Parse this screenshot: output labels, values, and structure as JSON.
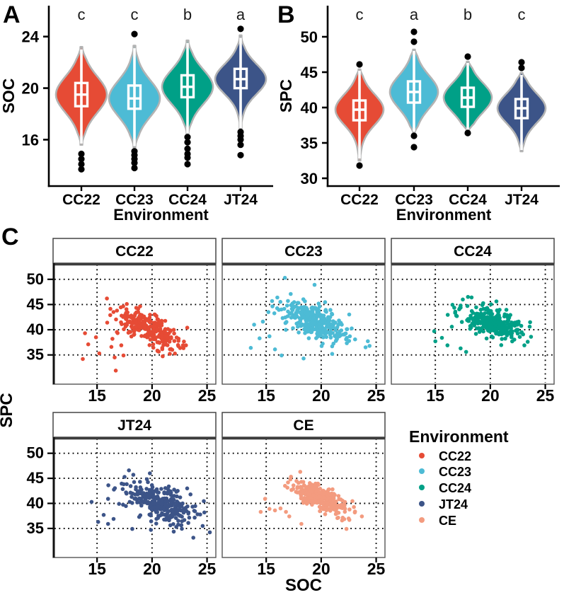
{
  "figure": {
    "panel_labels": {
      "A": "A",
      "B": "B",
      "C": "C"
    },
    "colors": {
      "CC22": "#E64B35",
      "CC23": "#4DBBD5",
      "CC24": "#00A087",
      "JT24": "#3C5488",
      "CE": "#F39B7F",
      "violin_outline": "#B3B3B3",
      "axis": "#000000",
      "background": "#FFFFFF",
      "facet_border": "#565656",
      "strip_border": "#454545",
      "outlier": "#000000",
      "box_stroke": "#FFFFFF"
    }
  },
  "chart_data": [
    {
      "id": "A",
      "type": "violin-box",
      "ylabel": "SOC",
      "xlabel": "Environment",
      "y_ticks": [
        16,
        20,
        24
      ],
      "y_domain": [
        12.4,
        26.4
      ],
      "categories": [
        "CC22",
        "CC23",
        "CC24",
        "JT24"
      ],
      "sig_letters": [
        "c",
        "c",
        "b",
        "a"
      ],
      "groups": [
        {
          "label": "CC22",
          "color": "#E64B35",
          "letter": "c",
          "q1": 18.6,
          "median": 19.5,
          "q3": 20.4,
          "whisker_low": 15.7,
          "whisker_high": 23.0,
          "violin_low": 15.6,
          "violin_high": 23.2,
          "outliers_low": [
            14.9,
            14.5,
            14.1,
            13.7
          ],
          "outliers_high": []
        },
        {
          "label": "CC23",
          "color": "#4DBBD5",
          "letter": "c",
          "q1": 18.4,
          "median": 19.2,
          "q3": 20.2,
          "whisker_low": 15.5,
          "whisker_high": 23.1,
          "violin_low": 15.4,
          "violin_high": 23.3,
          "outliers_low": [
            15.1,
            14.8,
            14.5,
            14.2,
            13.8
          ],
          "outliers_high": [
            24.2
          ]
        },
        {
          "label": "CC24",
          "color": "#00A087",
          "letter": "b",
          "q1": 19.3,
          "median": 20.1,
          "q3": 21.0,
          "whisker_low": 16.5,
          "whisker_high": 23.5,
          "violin_low": 16.4,
          "violin_high": 23.7,
          "outliers_low": [
            16.2,
            15.8,
            15.3,
            14.9,
            14.6,
            14.1
          ],
          "outliers_high": []
        },
        {
          "label": "JT24",
          "color": "#3C5488",
          "letter": "a",
          "q1": 20.0,
          "median": 20.7,
          "q3": 21.5,
          "whisker_low": 16.9,
          "whisker_high": 23.9,
          "violin_low": 16.8,
          "violin_high": 24.1,
          "outliers_low": [
            16.6,
            16.3,
            16.0,
            15.6,
            14.8
          ],
          "outliers_high": [
            24.6
          ]
        }
      ]
    },
    {
      "id": "B",
      "type": "violin-box",
      "ylabel": "SPC",
      "xlabel": "Environment",
      "y_ticks": [
        30,
        35,
        40,
        45,
        50
      ],
      "y_domain": [
        28.9,
        54.4
      ],
      "categories": [
        "CC22",
        "CC23",
        "CC24",
        "JT24"
      ],
      "sig_letters": [
        "c",
        "a",
        "b",
        "c"
      ],
      "groups": [
        {
          "label": "CC22",
          "color": "#E64B35",
          "letter": "c",
          "q1": 38.2,
          "median": 39.7,
          "q3": 41.0,
          "whisker_low": 32.8,
          "whisker_high": 45.2,
          "violin_low": 32.5,
          "violin_high": 45.4,
          "outliers_low": [
            31.8
          ],
          "outliers_high": [
            46.1
          ]
        },
        {
          "label": "CC23",
          "color": "#4DBBD5",
          "letter": "a",
          "q1": 40.7,
          "median": 42.2,
          "q3": 43.7,
          "whisker_low": 36.6,
          "whisker_high": 48.0,
          "violin_low": 36.5,
          "violin_high": 48.2,
          "outliers_low": [
            36.0,
            34.4
          ],
          "outliers_high": [
            50.7,
            49.3
          ]
        },
        {
          "label": "CC24",
          "color": "#00A087",
          "letter": "b",
          "q1": 40.1,
          "median": 41.4,
          "q3": 42.8,
          "whisker_low": 36.9,
          "whisker_high": 46.3,
          "violin_low": 36.8,
          "violin_high": 46.5,
          "outliers_low": [
            36.4
          ],
          "outliers_high": [
            47.2
          ]
        },
        {
          "label": "JT24",
          "color": "#3C5488",
          "letter": "c",
          "q1": 38.5,
          "median": 39.9,
          "q3": 41.2,
          "whisker_low": 34.0,
          "whisker_high": 44.6,
          "violin_low": 33.8,
          "violin_high": 44.9,
          "outliers_low": [],
          "outliers_high": [
            46.4,
            45.6
          ]
        }
      ]
    },
    {
      "id": "C",
      "type": "scatter",
      "xlabel": "SOC",
      "ylabel": "SPC",
      "x_ticks": [
        15,
        20,
        25
      ],
      "y_ticks": [
        35,
        40,
        45,
        50
      ],
      "x_domain": [
        11.0,
        25.8
      ],
      "y_domain": [
        29.2,
        53.2
      ],
      "legend": {
        "title": "Environment",
        "items": [
          {
            "label": "CC22",
            "color": "#E64B35"
          },
          {
            "label": "CC23",
            "color": "#4DBBD5"
          },
          {
            "label": "CC24",
            "color": "#00A087"
          },
          {
            "label": "JT24",
            "color": "#3C5488"
          },
          {
            "label": "CE",
            "color": "#F39B7F"
          }
        ]
      },
      "facets": [
        {
          "label": "CC22",
          "color": "#E64B35",
          "cluster": {
            "n": 290,
            "cx": 19.7,
            "cy": 40.2,
            "sd_x": 1.45,
            "sd_y": 2.0,
            "rho": -0.75
          },
          "extra_points": [
            [
              13.7,
              34.2
            ],
            [
              13.9,
              39.3
            ],
            [
              14.2,
              37.1
            ],
            [
              14.9,
              38.5
            ],
            [
              15.2,
              35.3
            ],
            [
              15.9,
              46.2
            ],
            [
              16.2,
              42.9
            ],
            [
              16.4,
              38.2
            ],
            [
              16.6,
              34.5
            ],
            [
              16.7,
              31.9
            ],
            [
              17.2,
              36.9
            ],
            [
              17.4,
              34.9
            ],
            [
              23.2,
              40.4
            ],
            [
              16.3,
              36.6
            ]
          ]
        },
        {
          "label": "CC23",
          "color": "#4DBBD5",
          "cluster": {
            "n": 310,
            "cx": 19.5,
            "cy": 41.6,
            "sd_x": 1.5,
            "sd_y": 2.0,
            "rho": -0.62
          },
          "extra_points": [
            [
              16.7,
              50.3
            ],
            [
              19.4,
              48.9
            ],
            [
              13.9,
              41.0
            ],
            [
              13.6,
              36.4
            ],
            [
              14.4,
              38.3
            ],
            [
              14.7,
              41.6
            ],
            [
              15.3,
              38.7
            ],
            [
              15.8,
              36.1
            ],
            [
              16.4,
              34.9
            ],
            [
              15.2,
              43.5
            ],
            [
              16.9,
              44.8
            ],
            [
              24.4,
              36.8
            ],
            [
              18.4,
              34.3
            ],
            [
              21.0,
              35.2
            ]
          ]
        },
        {
          "label": "CC24",
          "color": "#00A087",
          "cluster": {
            "n": 290,
            "cx": 20.3,
            "cy": 41.2,
            "sd_x": 1.4,
            "sd_y": 1.55,
            "rho": -0.5
          },
          "extra_points": [
            [
              14.9,
              39.7
            ],
            [
              15.0,
              37.7
            ],
            [
              15.6,
              38.4
            ],
            [
              16.1,
              36.9
            ],
            [
              16.5,
              40.6
            ],
            [
              17.3,
              36.3
            ],
            [
              17.8,
              35.6
            ],
            [
              23.4,
              37.6
            ],
            [
              23.7,
              38.6
            ],
            [
              17.5,
              46.0
            ],
            [
              17.3,
              44.8
            ],
            [
              16.9,
              42.8
            ],
            [
              23.1,
              36.9
            ]
          ]
        },
        {
          "label": "JT24",
          "color": "#3C5488",
          "cluster": {
            "n": 310,
            "cx": 20.8,
            "cy": 40.0,
            "sd_x": 1.5,
            "sd_y": 2.0,
            "rho": -0.55
          },
          "extra_points": [
            [
              14.5,
              40.3
            ],
            [
              15.1,
              36.3
            ],
            [
              15.6,
              37.7
            ],
            [
              16.0,
              35.9
            ],
            [
              16.5,
              36.9
            ],
            [
              16.0,
              40.9
            ],
            [
              17.0,
              39.9
            ],
            [
              17.9,
              46.6
            ],
            [
              18.3,
              45.7
            ],
            [
              17.5,
              45.3
            ],
            [
              19.8,
              46.0
            ],
            [
              19.9,
              34.7
            ],
            [
              22.2,
              35.3
            ],
            [
              23.3,
              36.1
            ],
            [
              24.6,
              35.5
            ],
            [
              18.2,
              34.9
            ]
          ]
        },
        {
          "label": "CE",
          "color": "#F39B7F",
          "cluster": {
            "n": 310,
            "cx": 19.9,
            "cy": 41.1,
            "sd_x": 1.25,
            "sd_y": 1.6,
            "rho": -0.7
          },
          "extra_points": [
            [
              14.5,
              38.3
            ],
            [
              14.9,
              40.9
            ],
            [
              15.3,
              38.9
            ],
            [
              15.8,
              38.6
            ],
            [
              16.3,
              39.0
            ],
            [
              16.8,
              38.3
            ],
            [
              17.1,
              37.4
            ],
            [
              18.2,
              35.9
            ],
            [
              18.1,
              46.3
            ],
            [
              21.9,
              36.6
            ],
            [
              22.5,
              37.0
            ],
            [
              23.7,
              37.4
            ],
            [
              22.3,
              34.9
            ]
          ]
        }
      ]
    }
  ]
}
